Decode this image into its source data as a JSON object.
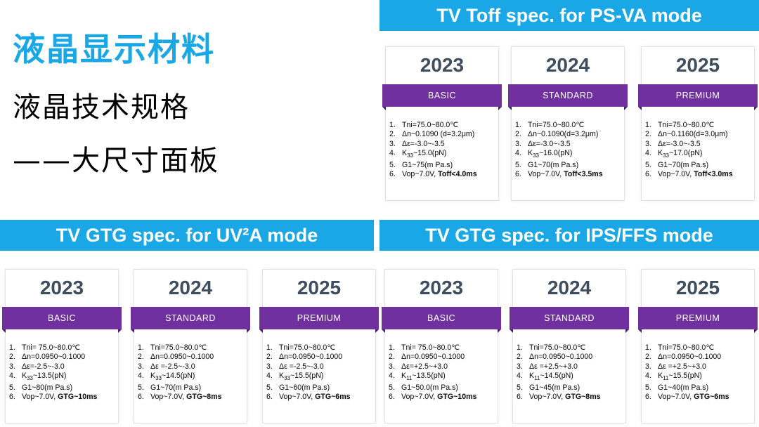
{
  "title": {
    "main": "液晶显示材料",
    "sub1": "液晶技术规格",
    "sub2": "——大尺寸面板"
  },
  "sections": [
    {
      "banner": "TV Toff spec. for PS-VA mode",
      "cards": [
        {
          "year": "2023",
          "tier": "BASIC",
          "specs": [
            "Tni=75.0~80.0℃",
            "Δn~0.1090  (d=3.2μm)",
            "Δε=-3.0~-3.5",
            "K33~15.0(pN)",
            "G1~75(m Pa.s)"
          ],
          "last_prefix": "Vop~7.0V, ",
          "last_bold": "Toff<4.0ms"
        },
        {
          "year": "2024",
          "tier": "STANDARD",
          "specs": [
            "Tni=75.0~80.0℃",
            "Δn~0.1090(d=3.2μm)",
            "Δε=-3.0~-3.5",
            "K33~16.0(pN)",
            "G1~70(m Pa.s)"
          ],
          "last_prefix": "Vop~7.0V, ",
          "last_bold": "Toff<3.5ms"
        },
        {
          "year": "2025",
          "tier": "PREMIUM",
          "specs": [
            "Tni=75.0~80.0℃",
            "Δn~0.1160(d=3.0μm)",
            "Δε=-3.0~-3.5",
            "K33~17.0(pN)",
            "G1~70(m Pa.s)"
          ],
          "last_prefix": "Vop~7.0V, ",
          "last_bold": "Toff<3.0ms"
        }
      ]
    },
    {
      "banner": "TV GTG spec. for UV²A mode",
      "cards": [
        {
          "year": "2023",
          "tier": "BASIC",
          "specs": [
            "Tni= 75.0~80.0℃",
            "Δn=0.0950~0.1000",
            "Δε=-2.5~-3.0",
            "K33~13.5(pN)",
            "G1~80(m Pa.s)"
          ],
          "last_prefix": "Vop~7.0V, ",
          "last_bold": "GTG~10ms"
        },
        {
          "year": "2024",
          "tier": "STANDARD",
          "specs": [
            "Tni=75.0~80.0℃",
            "Δn=0.0950~0.1000",
            "Δε =-2.5~-3.0",
            "K33~14.5(pN)",
            "G1~70(m Pa.s)"
          ],
          "last_prefix": "Vop~7.0V, ",
          "last_bold": "GTG~8ms"
        },
        {
          "year": "2025",
          "tier": "PREMIUM",
          "specs": [
            "Tni=75.0~80.0℃",
            "Δn=0.0950~0.1000",
            "Δε =-2.5~-3.0",
            "K33~15.5(pN)",
            "G1~60(m Pa.s)"
          ],
          "last_prefix": "Vop~7.0V, ",
          "last_bold": "GTG~6ms"
        }
      ]
    },
    {
      "banner": "TV GTG spec. for IPS/FFS mode",
      "cards": [
        {
          "year": "2023",
          "tier": "BASIC",
          "specs": [
            "Tni= 75.0~80.0℃",
            "Δn=0.0950~0.1000",
            "Δε=+2.5~+3.0",
            "K11~13.5(pN)",
            "G1~50.0(m Pa.s)"
          ],
          "last_prefix": "Vop~7.0V, ",
          "last_bold": "GTG~10ms"
        },
        {
          "year": "2024",
          "tier": "STANDARD",
          "specs": [
            "Tni=75.0~80.0℃",
            "Δn=0.0950~0.1000",
            "Δε =+2.5~+3.0",
            "K11~14.5(pN)",
            "G1~45(m Pa.s)"
          ],
          "last_prefix": "Vop~7.0V, ",
          "last_bold": "GTG~8ms"
        },
        {
          "year": "2025",
          "tier": "PREMIUM",
          "specs": [
            "Tni=75.0~80.0℃",
            "Δn=0.0950~0.1000",
            "Δε =+2.5~+3.0",
            "K11~15.5(pN)",
            "G1~40(m Pa.s)"
          ],
          "last_prefix": "Vop~7.0V, ",
          "last_bold": "GTG~6ms"
        }
      ]
    }
  ]
}
